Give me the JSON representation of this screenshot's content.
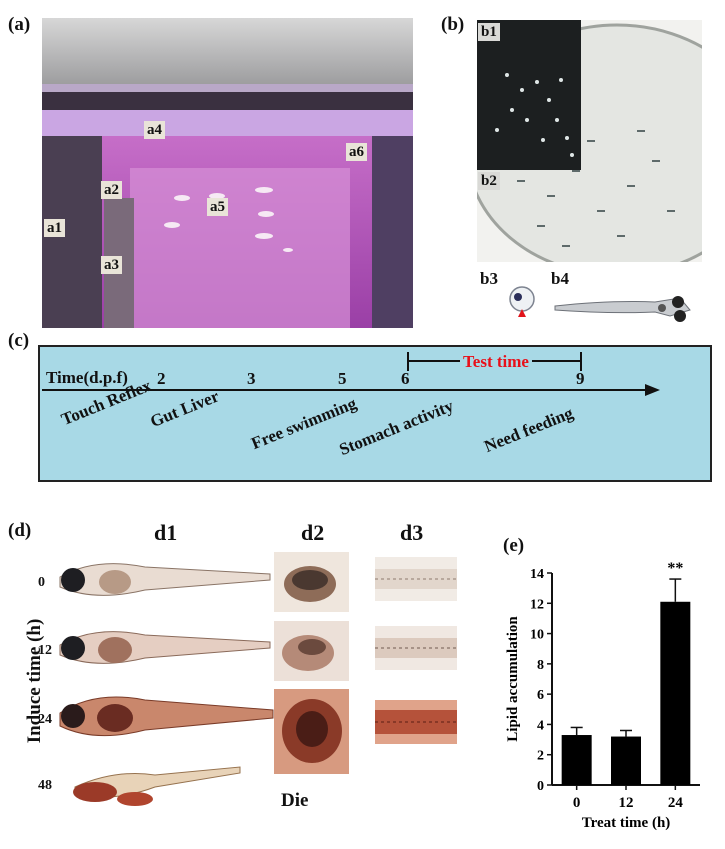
{
  "panel_a": {
    "label": "(a)",
    "tags": [
      "a1",
      "a2",
      "a3",
      "a4",
      "a5",
      "a6"
    ]
  },
  "panel_b": {
    "label": "(b)",
    "tags": [
      "b1",
      "b2",
      "b3",
      "b4"
    ]
  },
  "panel_c": {
    "label": "(c)",
    "axis_label": "Time(d.p.f)",
    "ticks": [
      "2",
      "3",
      "5",
      "6",
      "9"
    ],
    "test_time": "Test time",
    "stages": [
      "Touch Reflex",
      "Gut Liver",
      "Free swimming",
      "Stomach activity",
      "Need feeding"
    ],
    "colors": {
      "background": "#a8d9e6",
      "test_time": "#e8101a"
    }
  },
  "panel_d": {
    "label": "(d)",
    "columns": [
      "d1",
      "d2",
      "d3"
    ],
    "y_label": "Induce time (h)",
    "rows": [
      "0",
      "12",
      "24",
      "48"
    ],
    "die_label": "Die"
  },
  "panel_e": {
    "label": "(e)"
  },
  "chart_data": {
    "type": "bar",
    "categories": [
      "0",
      "12",
      "24"
    ],
    "values": [
      3.3,
      3.2,
      12.1
    ],
    "errors": [
      0.5,
      0.4,
      1.5
    ],
    "annotations": [
      "",
      "",
      "**"
    ],
    "xlabel": "Treat time (h)",
    "ylabel": "Lipid accumulation",
    "ylim": [
      0,
      14
    ],
    "yticks": [
      "0",
      "2",
      "4",
      "6",
      "8",
      "10",
      "12",
      "14"
    ],
    "bar_color": "#000000",
    "grid": false
  }
}
